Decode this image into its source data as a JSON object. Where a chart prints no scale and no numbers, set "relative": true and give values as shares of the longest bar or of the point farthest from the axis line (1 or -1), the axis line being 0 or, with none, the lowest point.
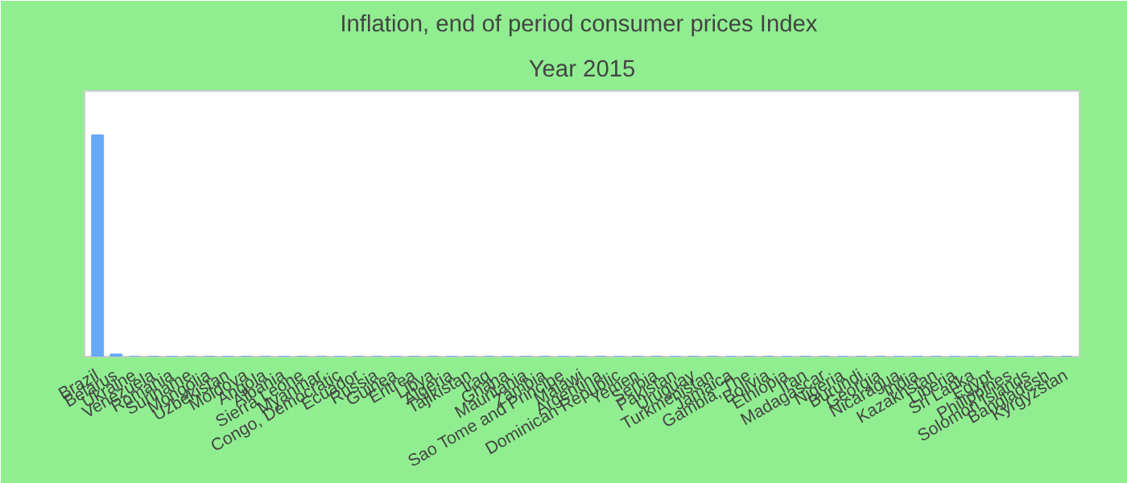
{
  "chart_data": {
    "type": "bar",
    "title": "Inflation, end of period consumer prices  Index",
    "subtitle": "Year 2015",
    "categories": [
      "Brazil",
      "Belarus",
      "Ukraine",
      "Venezuela",
      "Romania",
      "Suriname",
      "Mongolia",
      "Uzbekistan",
      "Moldova",
      "Angola",
      "Albania",
      "Sierra Leone",
      "Myanmar",
      "Congo, Democratic",
      "Ecuador",
      "Russia",
      "Guinea",
      "Eritrea",
      "Libya",
      "Algeria",
      "Tajikistan",
      "Iraq",
      "Ghana",
      "Mauritania",
      "Zambia",
      "Sao Tome and Principe",
      "Malawi",
      "Argentina",
      "Dominican Republic",
      "Yemen",
      "Serbia",
      "Pakistan",
      "Uruguay",
      "Turkmenistan",
      "Jamaica",
      "Gambia, The",
      "Bolivia",
      "Ethiopia",
      "Iran",
      "Madagascar",
      "Nigeria",
      "Burundi",
      "Georgia",
      "Nicaragua",
      "India",
      "Kazakhstan",
      "Liberia",
      "Sri Lanka",
      "Egypt",
      "Philippines",
      "Solomon Islands",
      "Bangladesh",
      "Kyrgyzstan"
    ],
    "values": [
      1,
      0.01,
      0,
      0,
      0,
      0,
      0,
      0,
      0,
      0,
      0,
      0,
      0,
      0,
      0,
      0,
      0,
      0,
      0,
      0,
      0,
      0,
      0,
      0,
      0,
      0,
      0,
      0,
      0,
      0,
      0,
      0,
      0,
      0,
      0,
      0,
      0,
      0,
      0,
      0,
      0,
      0,
      0,
      0,
      0,
      0,
      0,
      0,
      0,
      0,
      0,
      0,
      0
    ],
    "color": "#66aaf7",
    "relative": true
  }
}
